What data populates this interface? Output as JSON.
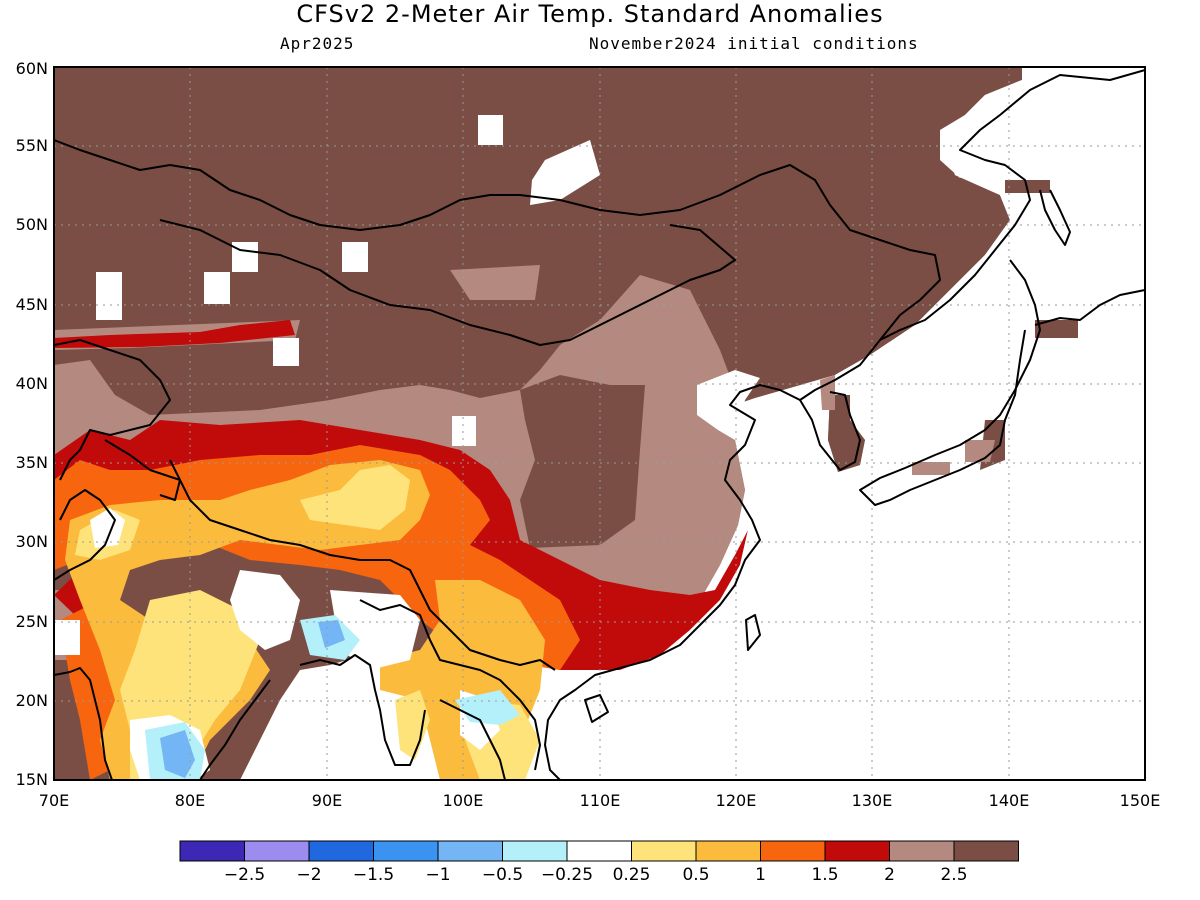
{
  "header": {
    "title": "CFSv2 2-Meter Air Temp. Standard Anomalies",
    "valid_month": "Apr2025",
    "init": "November2024 initial conditions"
  },
  "map": {
    "lon_range": [
      70,
      150
    ],
    "lat_range": [
      15,
      60
    ],
    "lon_ticks": [
      "70E",
      "80E",
      "90E",
      "100E",
      "110E",
      "120E",
      "130E",
      "140E",
      "150E"
    ],
    "lat_ticks": [
      "15N",
      "20N",
      "25N",
      "30N",
      "35N",
      "40N",
      "45N",
      "50N",
      "55N",
      "60N"
    ],
    "grid": "dotted",
    "field": "2-meter air temperature standardized anomaly"
  },
  "colorbar": {
    "colors": [
      "#3d27b5",
      "#9d8cf0",
      "#1f68e0",
      "#3a93f0",
      "#74b5f5",
      "#b3f0fa",
      "#ffffff",
      "#fde37a",
      "#fbbb3c",
      "#f8650f",
      "#c10a0a",
      "#b48a80",
      "#7a4e45"
    ],
    "labels": [
      "−2.5",
      "−2",
      "−1.5",
      "−1",
      "−0.5",
      "−0.25",
      "0.25",
      "0.5",
      "1",
      "1.5",
      "2",
      "2.5"
    ]
  }
}
